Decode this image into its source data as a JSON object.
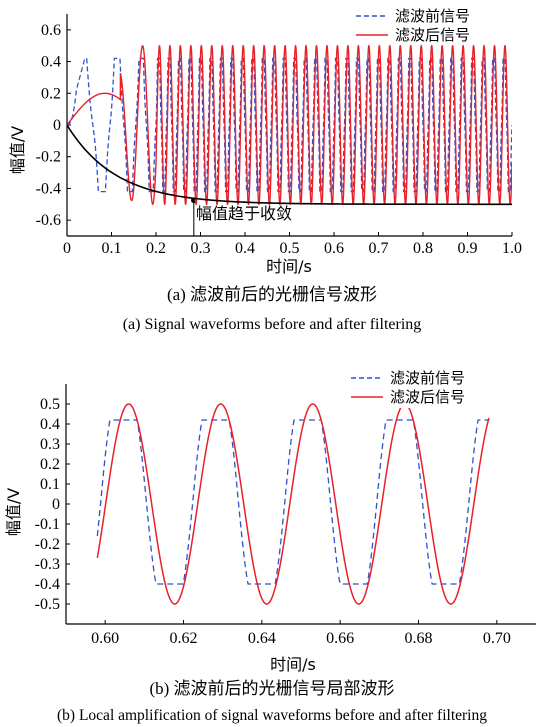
{
  "colors": {
    "before": "#2f52c9",
    "after": "#e8212a",
    "convergence": "#000000",
    "axis": "#000000"
  },
  "chart_data": [
    {
      "type": "line",
      "caption_cn": "(a) 滤波前后的光栅信号波形",
      "caption_en": "(a) Signal waveforms before and after filtering",
      "xlabel": "时间/s",
      "ylabel": "幅值/V",
      "xlim": [
        0,
        1.0
      ],
      "ylim": [
        -0.7,
        0.7
      ],
      "x_ticks": [
        "0",
        "0.1",
        "0.2",
        "0.3",
        "0.4",
        "0.5",
        "0.6",
        "0.7",
        "0.8",
        "0.9",
        "1.0"
      ],
      "y_ticks": [
        "-0.6",
        "-0.4",
        "-0.2",
        "0",
        "0.2",
        "0.4",
        "0.6"
      ],
      "legend": [
        "滤波前信号",
        "滤波后信号"
      ],
      "legend_position": "top-right",
      "annotation": {
        "text": "幅值趋于收敛",
        "x": 0.285,
        "y": -0.475
      },
      "series": [
        {
          "name": "滤波前信号",
          "style": "dashed",
          "amplitude": 0.42,
          "description_points": [
            [
              0.0,
              0.0
            ],
            [
              0.05,
              0.42
            ],
            [
              0.12,
              0.42
            ],
            [
              0.14,
              -0.43
            ],
            [
              0.2,
              0.42
            ],
            [
              0.25,
              -0.43
            ],
            [
              1.0,
              0.4
            ]
          ]
        },
        {
          "name": "滤波后信号",
          "style": "solid",
          "amplitude": 0.5,
          "description_points": [
            [
              0.0,
              0.0
            ],
            [
              0.085,
              0.2
            ],
            [
              0.16,
              -0.45
            ],
            [
              0.2,
              0.42
            ],
            [
              1.0,
              0.48
            ]
          ]
        },
        {
          "name": "",
          "style": "solid",
          "points": [
            [
              0.0,
              0.0
            ],
            [
              0.05,
              -0.12
            ],
            [
              0.1,
              -0.26
            ],
            [
              0.15,
              -0.37
            ],
            [
              0.2,
              -0.43
            ],
            [
              0.285,
              -0.475
            ],
            [
              0.4,
              -0.49
            ],
            [
              0.6,
              -0.5
            ],
            [
              1.0,
              -0.5
            ]
          ]
        }
      ]
    },
    {
      "type": "line",
      "caption_cn": "(b) 滤波前后的光栅信号局部波形",
      "caption_en": "(b) Local amplification of signal waveforms before and after filtering",
      "xlabel": "时间/s",
      "ylabel": "幅值/V",
      "xlim": [
        0.59,
        0.71
      ],
      "ylim": [
        -0.6,
        0.6
      ],
      "x_ticks": [
        "0.60",
        "0.62",
        "0.64",
        "0.66",
        "0.68",
        "0.70"
      ],
      "y_ticks": [
        "-0.5",
        "-0.4",
        "-0.3",
        "-0.2",
        "-0.1",
        "0",
        "0.1",
        "0.2",
        "0.3",
        "0.4",
        "0.5"
      ],
      "legend": [
        "滤波前信号",
        "滤波后信号"
      ],
      "legend_position": "top-right",
      "period": 0.0235,
      "series": [
        {
          "name": "滤波前信号",
          "style": "dashed",
          "x_range": [
            0.598,
            0.698
          ],
          "peak_values": [
            0.43,
            0.4,
            0.43
          ],
          "trough_values": [
            -0.38,
            -0.42,
            -0.38
          ]
        },
        {
          "name": "滤波后信号",
          "style": "solid",
          "x_range": [
            0.598,
            0.698
          ],
          "peak": 0.5,
          "trough": -0.5,
          "peak_x": [
            0.606,
            0.6295,
            0.653,
            0.6765
          ]
        }
      ]
    }
  ]
}
